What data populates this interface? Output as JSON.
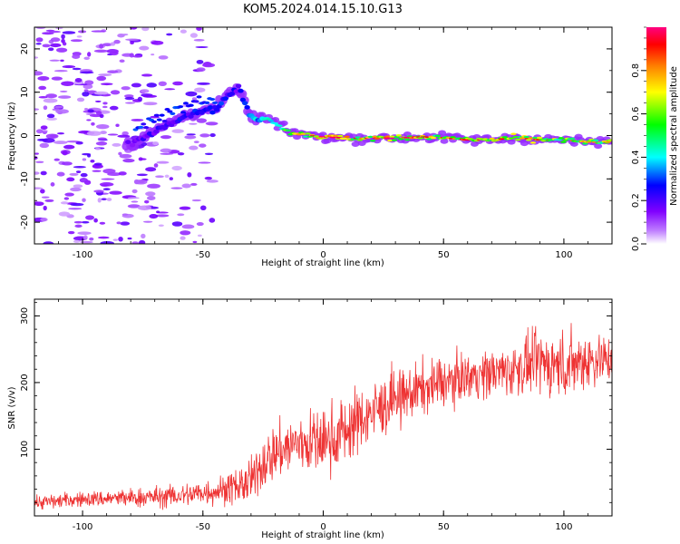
{
  "figure": {
    "title": "KOM5.2024.014.15.10.G13"
  },
  "chart_data": [
    {
      "type": "heatmap",
      "xlabel": "Height of straight line (km)",
      "ylabel": "Frequency (Hz)",
      "xlim": [
        -120,
        120
      ],
      "ylim": [
        -25,
        25
      ],
      "xticks": [
        -100,
        -50,
        0,
        50,
        100
      ],
      "yticks": [
        -20,
        -10,
        0,
        10,
        20
      ],
      "grid": false,
      "colorbar": {
        "label": "Normalized spectral amplitude",
        "range": [
          0,
          1
        ],
        "ticks": [
          0.0,
          0.2,
          0.4,
          0.6,
          0.8
        ],
        "colormap": [
          "#ff0080",
          "#ff0000",
          "#ff8000",
          "#ffff00",
          "#00ff00",
          "#00ffff",
          "#0000ff",
          "#8000ff",
          "#c080ff",
          "#ffffff"
        ]
      },
      "trace": {
        "x": [
          -80,
          -70,
          -60,
          -50,
          -45,
          -40,
          -35,
          -30,
          -25,
          -20,
          -15,
          -10,
          -5,
          0,
          10,
          20,
          30,
          40,
          50,
          60,
          70,
          80,
          90,
          100,
          110,
          120
        ],
        "y": [
          -2,
          1,
          4,
          6,
          6,
          9,
          11,
          4,
          4,
          3,
          1,
          0.5,
          0,
          -0.3,
          -0.6,
          -0.6,
          -0.6,
          -0.3,
          -0.5,
          -1,
          -1,
          -0.5,
          -1,
          -1,
          -1.5,
          -1.5
        ],
        "amplitude": [
          0.2,
          0.25,
          0.3,
          0.3,
          0.35,
          0.3,
          0.25,
          0.45,
          0.55,
          0.65,
          0.75,
          0.8,
          0.85,
          0.9,
          0.85,
          0.85,
          0.9,
          0.85,
          0.8,
          0.85,
          0.85,
          0.8,
          0.8,
          0.75,
          0.7,
          0.7
        ]
      }
    },
    {
      "type": "line",
      "xlabel": "Height of straight line (km)",
      "ylabel": "SNR (v/v)",
      "xlim": [
        -120,
        120
      ],
      "ylim": [
        0,
        325
      ],
      "xticks": [
        -100,
        -50,
        0,
        50,
        100
      ],
      "yticks": [
        100,
        200,
        300
      ],
      "grid": false,
      "line_color": "#ee3333",
      "series": [
        {
          "x": [
            -120,
            -100,
            -80,
            -60,
            -40,
            -30,
            -25,
            -20,
            -10,
            0,
            10,
            20,
            40,
            60,
            80,
            90,
            100,
            110,
            120
          ],
          "y": [
            20,
            25,
            27,
            30,
            40,
            50,
            80,
            95,
            110,
            110,
            130,
            155,
            190,
            210,
            220,
            230,
            225,
            235,
            235
          ],
          "peak_to_peak": [
            20,
            20,
            25,
            30,
            40,
            60,
            70,
            75,
            80,
            90,
            90,
            80,
            70,
            60,
            70,
            80,
            90,
            80,
            60
          ]
        }
      ]
    }
  ]
}
